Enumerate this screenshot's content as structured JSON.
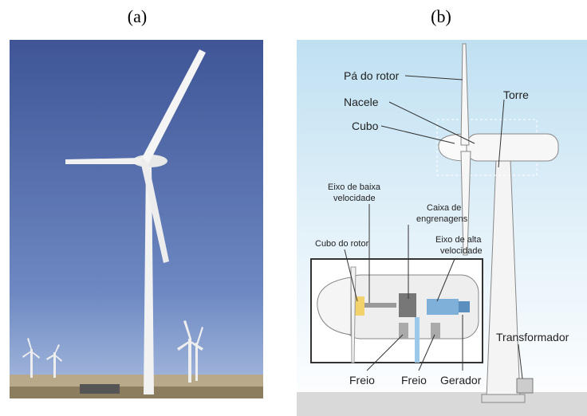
{
  "panels": [
    {
      "label": "(a)"
    },
    {
      "label": "(b)",
      "callouts": [
        {
          "lines": [
            "Pá do rotor"
          ]
        },
        {
          "lines": [
            "Nacele"
          ]
        },
        {
          "lines": [
            "Cubo"
          ]
        },
        {
          "lines": [
            "Torre"
          ]
        },
        {
          "lines": [
            "Eixo de baixa",
            "velocidade"
          ]
        },
        {
          "lines": [
            "Caixa de",
            "engrenagens"
          ]
        },
        {
          "lines": [
            "Eixo de alta",
            "velocidade"
          ]
        },
        {
          "lines": [
            "Cubo do rotor"
          ]
        },
        {
          "lines": [
            "Transformador"
          ]
        },
        {
          "lines": [
            "Freio"
          ]
        },
        {
          "lines": [
            "Freio"
          ]
        },
        {
          "lines": [
            "Gerador"
          ]
        }
      ]
    }
  ]
}
